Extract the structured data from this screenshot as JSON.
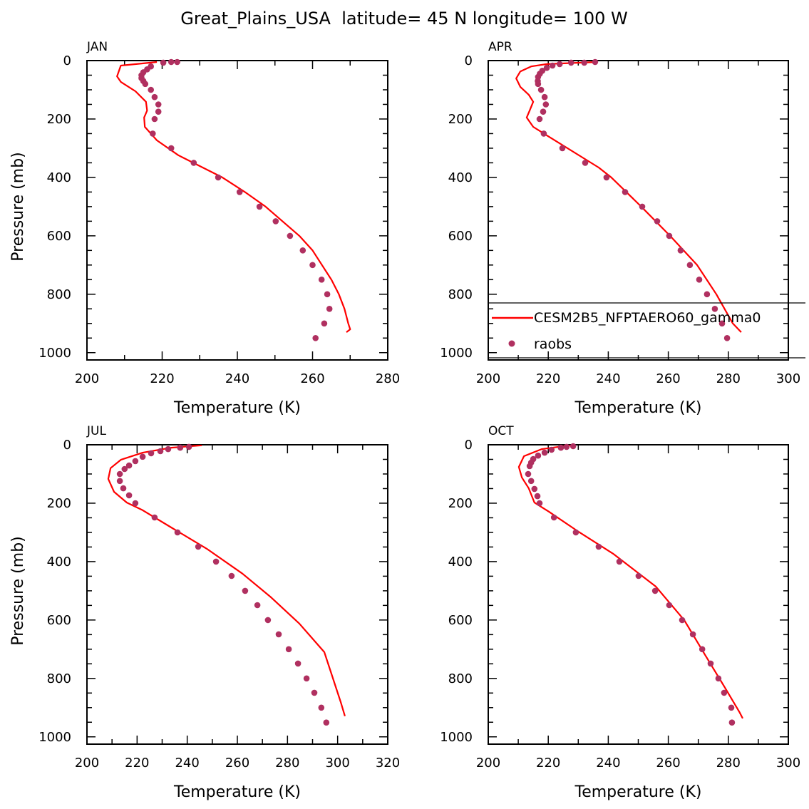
{
  "chart_data": {
    "title": "Great_Plains_USA  latitude= 45 N longitude= 100 W",
    "type": "line",
    "legend": {
      "placement": "bottom-right of APR panel",
      "entries": [
        {
          "label": "CESM2B5_NFPTAERO60_gamma0",
          "style": "line",
          "color": "#ff0000"
        },
        {
          "label": "raobs",
          "style": "marker",
          "color": "#b03060"
        }
      ]
    },
    "panels": [
      {
        "label": "JAN",
        "xlabel": "Temperature (K)",
        "ylabel": "Pressure (mb)",
        "xlim": [
          200,
          280
        ],
        "xticks": [
          200,
          220,
          240,
          260,
          280
        ],
        "ylim": [
          0,
          1025
        ],
        "yticks": [
          0,
          200,
          400,
          600,
          800,
          1000
        ],
        "y_inverted": true,
        "model": {
          "p": [
            5,
            17,
            54,
            73,
            105,
            141,
            171,
            195,
            227,
            273,
            324,
            400,
            450,
            500,
            550,
            600,
            650,
            700,
            750,
            800,
            850,
            900,
            920,
            930
          ],
          "t": [
            218.6,
            209,
            208,
            209,
            212.9,
            215.7,
            216,
            215.2,
            215.4,
            218.6,
            224.3,
            236,
            242,
            247.5,
            252,
            256.5,
            260,
            262.5,
            265,
            267,
            268.5,
            269.5,
            270,
            269
          ]
        },
        "raobs": {
          "p": [
            5,
            5,
            7,
            20,
            30,
            40,
            50,
            60,
            70,
            80,
            100,
            125,
            150,
            175,
            200,
            250,
            300,
            350,
            400,
            450,
            500,
            550,
            600,
            650,
            700,
            750,
            800,
            850,
            900,
            950
          ],
          "t": [
            224,
            222.4,
            220.3,
            217,
            216,
            215,
            214.5,
            214.5,
            215,
            215.5,
            217,
            218,
            219,
            219,
            218,
            217.5,
            222.4,
            228.4,
            234.9,
            240.6,
            245.9,
            250.2,
            254,
            257.4,
            260,
            262.4,
            263.9,
            264.5,
            263.1,
            260.8
          ]
        }
      },
      {
        "label": "APR",
        "xlabel": "Temperature (K)",
        "ylabel": "",
        "xlim": [
          200,
          300
        ],
        "xticks": [
          200,
          220,
          240,
          260,
          280,
          300
        ],
        "ylim": [
          0,
          1025
        ],
        "yticks": [
          0,
          200,
          400,
          600,
          800,
          1000
        ],
        "y_inverted": true,
        "model": {
          "p": [
            5,
            12,
            20,
            37,
            61,
            90,
            117,
            141,
            171,
            195,
            227,
            256,
            366,
            400,
            500,
            600,
            700,
            800,
            900,
            930
          ],
          "t": [
            236,
            219.5,
            214.3,
            210.7,
            209.3,
            210.7,
            213.5,
            215,
            213.8,
            212.8,
            215,
            219.5,
            236.8,
            241,
            251,
            260.6,
            269.6,
            276,
            281.5,
            284.3
          ]
        },
        "raobs": {
          "p": [
            5,
            7,
            7,
            12,
            17,
            25,
            35,
            45,
            56,
            70,
            80,
            100,
            125,
            150,
            175,
            200,
            250,
            300,
            350,
            400,
            450,
            500,
            550,
            600,
            650,
            700,
            750,
            800,
            850,
            900,
            950
          ],
          "t": [
            235.6,
            232,
            227.6,
            223.8,
            221.4,
            219.5,
            218,
            217.2,
            216.6,
            216.5,
            216.6,
            217.6,
            218.8,
            219.2,
            218.3,
            217.1,
            218.5,
            224.7,
            232.3,
            239.4,
            245.6,
            251.3,
            256.3,
            260.3,
            264.1,
            267.2,
            270.3,
            272.9,
            275.5,
            277.9,
            279.6
          ]
        }
      },
      {
        "label": "JUL",
        "xlabel": "Temperature (K)",
        "ylabel": "Pressure (mb)",
        "xlim": [
          200,
          320
        ],
        "xticks": [
          200,
          220,
          240,
          260,
          280,
          300,
          320
        ],
        "ylim": [
          0,
          1025
        ],
        "yticks": [
          0,
          200,
          400,
          600,
          800,
          1000
        ],
        "y_inverted": true,
        "model": {
          "p": [
            2,
            10,
            27,
            51,
            80,
            117,
            161,
            198,
            224,
            283,
            356,
            441,
            522,
            612,
            710,
            880,
            929
          ],
          "t": [
            245.8,
            233.6,
            222.2,
            213.6,
            209.4,
            208.5,
            210.8,
            215.9,
            222.2,
            233.6,
            247.8,
            262,
            273.4,
            284.7,
            294.7,
            301.2,
            302.9
          ]
        },
        "raobs": {
          "p": [
            7,
            10,
            15,
            22,
            29,
            41,
            56,
            71,
            83,
            100,
            124,
            149,
            173,
            200,
            249,
            300,
            349,
            400,
            449,
            500,
            549,
            600,
            649,
            700,
            749,
            800,
            849,
            900,
            951
          ],
          "t": [
            240.7,
            237.2,
            232.4,
            229.3,
            225.6,
            222.2,
            219.3,
            216.8,
            215,
            213.1,
            213.1,
            214.5,
            216.8,
            219.3,
            227,
            236.1,
            244.4,
            251.5,
            257.7,
            263.1,
            268,
            272.2,
            276.5,
            280.5,
            284.2,
            287.6,
            290.7,
            293.5,
            295.5
          ]
        }
      },
      {
        "label": "OCT",
        "xlabel": "Temperature (K)",
        "ylabel": "",
        "xlim": [
          200,
          300
        ],
        "xticks": [
          200,
          220,
          240,
          260,
          280,
          300
        ],
        "ylim": [
          0,
          1025
        ],
        "yticks": [
          0,
          200,
          400,
          600,
          800,
          1000
        ],
        "y_inverted": true,
        "model": {
          "p": [
            2,
            15,
            39,
            76,
            112,
            149,
            198,
            229,
            295,
            373,
            485,
            600,
            722,
            844,
            917,
            937
          ],
          "t": [
            227.3,
            217.8,
            211.9,
            210.2,
            211.2,
            213.5,
            215.4,
            220.2,
            229.7,
            241.6,
            255.8,
            265.3,
            272.4,
            279.6,
            283.8,
            284.8
          ]
        },
        "raobs": {
          "p": [
            5,
            7,
            10,
            17,
            27,
            37,
            49,
            61,
            73,
            100,
            124,
            151,
            176,
            200,
            249,
            300,
            349,
            400,
            449,
            500,
            549,
            600,
            649,
            700,
            749,
            800,
            849,
            900,
            951
          ],
          "t": [
            228.3,
            226.1,
            224.2,
            221.1,
            218.8,
            216.6,
            215,
            214.3,
            213.8,
            213.3,
            214.3,
            215.4,
            216.4,
            217.1,
            221.9,
            229.2,
            236.8,
            243.7,
            250.1,
            255.6,
            260.3,
            264.6,
            268.2,
            271.3,
            274.1,
            276.7,
            278.6,
            281,
            281.2
          ]
        }
      }
    ],
    "colors": {
      "model": "#ff0000",
      "raobs": "#b03060"
    }
  }
}
